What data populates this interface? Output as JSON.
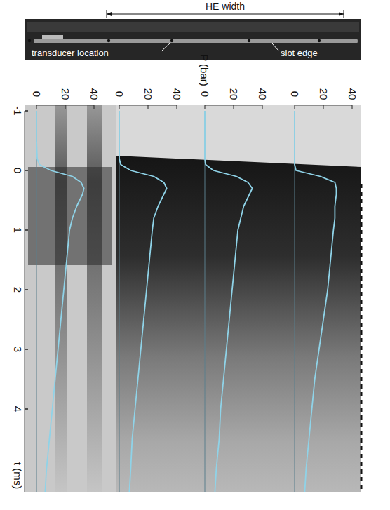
{
  "photo": {
    "width_label": "HE width",
    "labels": [
      "transducer location",
      "slot edge"
    ]
  },
  "chart_data": [
    {
      "type": "line",
      "x_label": "t (ms)",
      "y_label": "P (bar)",
      "x": [
        -1,
        -0.5,
        -0.2,
        -0.1,
        0,
        0.1,
        0.2,
        0.3,
        0.4,
        0.6,
        0.8,
        1,
        1.5,
        2,
        2.5,
        3,
        3.5,
        4,
        4.5,
        5,
        5.4
      ],
      "xlim": [
        -1,
        5.4
      ],
      "xticks": [
        -1,
        0,
        1,
        2,
        3,
        4
      ],
      "ylim": [
        0,
        40
      ],
      "yticks": [
        0,
        20,
        40
      ],
      "tick_labels": true,
      "series": [
        {
          "color": "#8fd3e8",
          "values": [
            0,
            0,
            0.5,
            2,
            10,
            25,
            31,
            33,
            32,
            28,
            25,
            23,
            21,
            19,
            17,
            15,
            13,
            11,
            9,
            7,
            6
          ]
        }
      ]
    },
    {
      "type": "line",
      "x": [
        -1,
        -0.5,
        -0.2,
        -0.1,
        0,
        0.1,
        0.2,
        0.3,
        0.4,
        0.6,
        0.8,
        1,
        1.5,
        2,
        2.5,
        3,
        3.5,
        4,
        4.5,
        5,
        5.4
      ],
      "xlim": [
        -1,
        5.4
      ],
      "ylim": [
        0,
        40
      ],
      "yticks": [
        0,
        20,
        40
      ],
      "tick_labels": "y",
      "series": [
        {
          "color": "#8fd3e8",
          "values": [
            0,
            0,
            0,
            1,
            8,
            24,
            31,
            33,
            31,
            27,
            24,
            23,
            21,
            19,
            17,
            15,
            13,
            11,
            9,
            8,
            7
          ]
        }
      ]
    },
    {
      "type": "line",
      "x": [
        -1,
        -0.5,
        -0.2,
        -0.1,
        0,
        0.1,
        0.2,
        0.3,
        0.4,
        0.6,
        0.8,
        1,
        1.5,
        2,
        2.5,
        3,
        3.5,
        4,
        4.5,
        5,
        5.4
      ],
      "xlim": [
        -1,
        5.4
      ],
      "ylim": [
        0,
        40
      ],
      "yticks": [
        0,
        20,
        40
      ],
      "tick_labels": "y",
      "series": [
        {
          "color": "#8fd3e8",
          "values": [
            0,
            0,
            0,
            0.5,
            6,
            22,
            30,
            33,
            31,
            27,
            25,
            23,
            21,
            19,
            17,
            15,
            13,
            11,
            10,
            8,
            7
          ]
        }
      ]
    },
    {
      "type": "line",
      "x": [
        -1,
        -0.5,
        -0.2,
        -0.1,
        0,
        0.1,
        0.2,
        0.3,
        0.4,
        0.6,
        0.8,
        1,
        1.5,
        2,
        2.5,
        3,
        3.5,
        4,
        4.5,
        5,
        5.4
      ],
      "xlim": [
        -1,
        5.4
      ],
      "ylim": [
        0,
        40
      ],
      "yticks": [
        0,
        20,
        40
      ],
      "tick_labels": "y",
      "series": [
        {
          "color": "#8fd3e8",
          "values": [
            0,
            0,
            0,
            0,
            1,
            18,
            28,
            29,
            29,
            28,
            28,
            27,
            25,
            23,
            20,
            17,
            14,
            12,
            10,
            8,
            7
          ]
        }
      ]
    }
  ]
}
